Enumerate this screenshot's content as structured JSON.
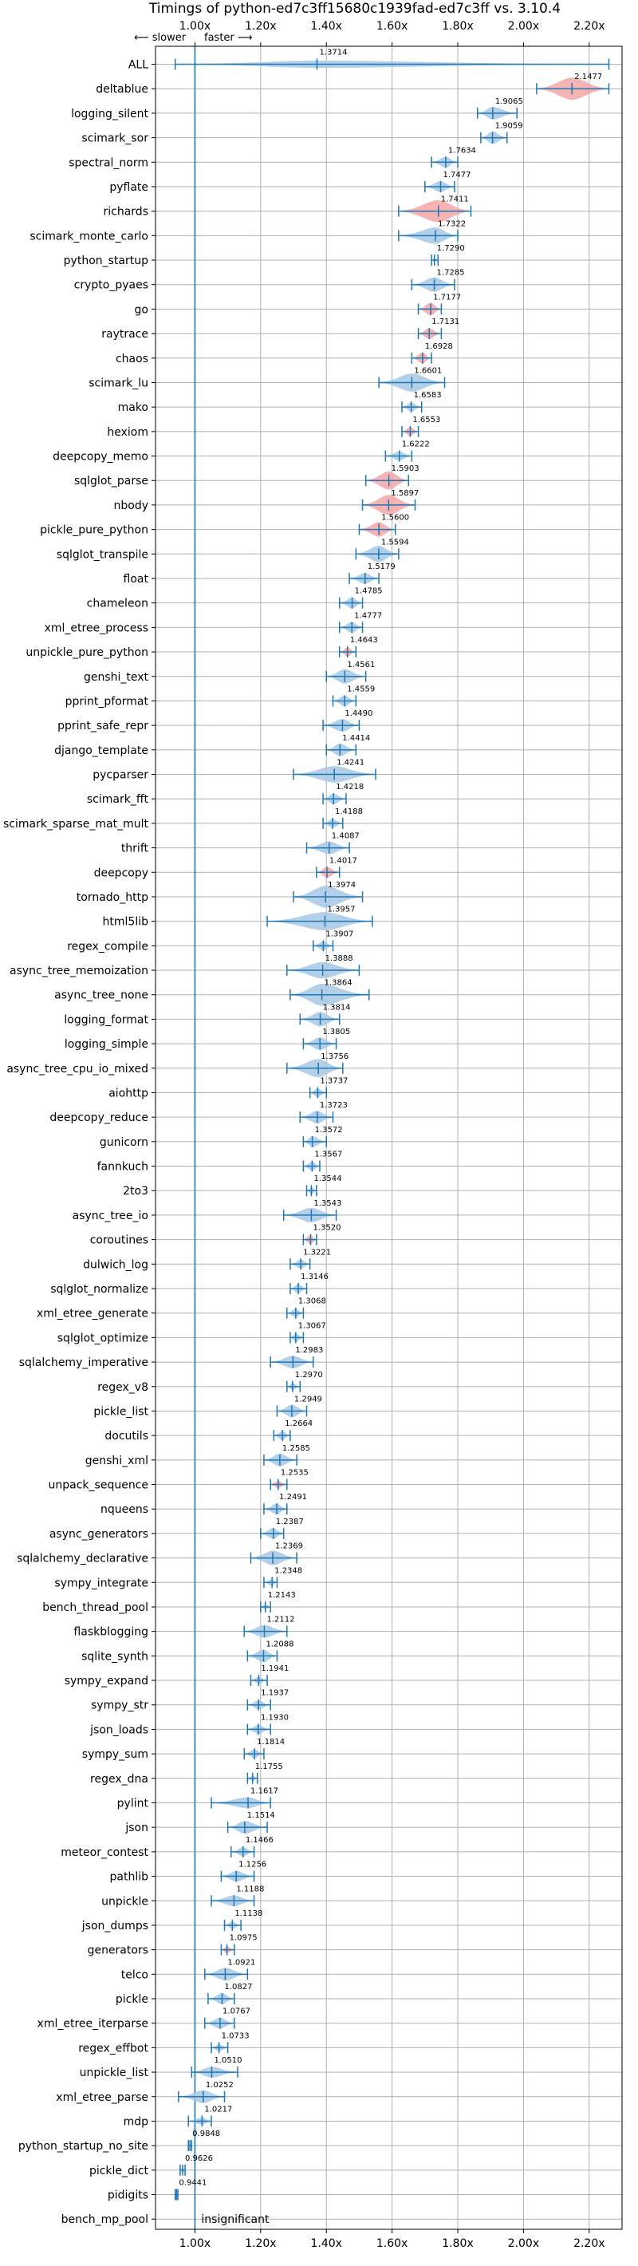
{
  "chart_data": {
    "type": "violin",
    "title": "Timings of python-ed7c3ff15680c1939fad-ed7c3ff vs. 3.10.4",
    "direction_labels": {
      "slower": "⟵ slower",
      "faster": "faster ⟶"
    },
    "xlim": [
      0.88,
      2.3
    ],
    "xticks": [
      1.0,
      1.2,
      1.4,
      1.6,
      1.8,
      2.0,
      2.2
    ],
    "xtick_labels": [
      "1.00x",
      "1.20x",
      "1.40x",
      "1.60x",
      "1.80x",
      "2.00x",
      "2.20x"
    ],
    "grid": true,
    "reference_line": 1.0,
    "colors": {
      "faster": "#1f77b4",
      "faster_fill": "#a6c8e4",
      "slower_fill": "#f4a6a6",
      "slower_stroke": "#d62728"
    },
    "insignificant_label": "insignificant",
    "benchmarks": [
      {
        "name": "ALL",
        "median": 1.3714,
        "min": 0.94,
        "max": 2.26,
        "width": 0.02,
        "highlight": false
      },
      {
        "name": "deltablue",
        "median": 2.1477,
        "min": 2.04,
        "max": 2.26,
        "width": 0.07,
        "highlight": true
      },
      {
        "name": "logging_silent",
        "median": 1.9065,
        "min": 1.86,
        "max": 1.98,
        "width": 0.035,
        "highlight": false
      },
      {
        "name": "scimark_sor",
        "median": 1.9059,
        "min": 1.87,
        "max": 1.95,
        "width": 0.035,
        "highlight": false
      },
      {
        "name": "spectral_norm",
        "median": 1.7634,
        "min": 1.72,
        "max": 1.8,
        "width": 0.03,
        "highlight": false
      },
      {
        "name": "pyflate",
        "median": 1.7477,
        "min": 1.7,
        "max": 1.79,
        "width": 0.03,
        "highlight": false
      },
      {
        "name": "richards",
        "median": 1.7411,
        "min": 1.62,
        "max": 1.84,
        "width": 0.06,
        "highlight": true
      },
      {
        "name": "scimark_monte_carlo",
        "median": 1.7322,
        "min": 1.62,
        "max": 1.8,
        "width": 0.045,
        "highlight": false
      },
      {
        "name": "python_startup",
        "median": 1.729,
        "min": 1.72,
        "max": 1.74,
        "width": 0.008,
        "highlight": false
      },
      {
        "name": "crypto_pyaes",
        "median": 1.7285,
        "min": 1.66,
        "max": 1.79,
        "width": 0.04,
        "highlight": false
      },
      {
        "name": "go",
        "median": 1.7177,
        "min": 1.68,
        "max": 1.75,
        "width": 0.035,
        "highlight": true
      },
      {
        "name": "raytrace",
        "median": 1.7131,
        "min": 1.68,
        "max": 1.75,
        "width": 0.03,
        "highlight": true
      },
      {
        "name": "chaos",
        "median": 1.6928,
        "min": 1.66,
        "max": 1.72,
        "width": 0.03,
        "highlight": true
      },
      {
        "name": "scimark_lu",
        "median": 1.6601,
        "min": 1.56,
        "max": 1.76,
        "width": 0.05,
        "highlight": false
      },
      {
        "name": "mako",
        "median": 1.6583,
        "min": 1.63,
        "max": 1.69,
        "width": 0.025,
        "highlight": false
      },
      {
        "name": "hexiom",
        "median": 1.6553,
        "min": 1.63,
        "max": 1.68,
        "width": 0.025,
        "highlight": true
      },
      {
        "name": "deepcopy_memo",
        "median": 1.6222,
        "min": 1.58,
        "max": 1.66,
        "width": 0.025,
        "highlight": false
      },
      {
        "name": "sqlglot_parse",
        "median": 1.5903,
        "min": 1.52,
        "max": 1.65,
        "width": 0.05,
        "highlight": true
      },
      {
        "name": "nbody",
        "median": 1.5897,
        "min": 1.51,
        "max": 1.67,
        "width": 0.055,
        "highlight": true
      },
      {
        "name": "pickle_pure_python",
        "median": 1.56,
        "min": 1.5,
        "max": 1.61,
        "width": 0.04,
        "highlight": true
      },
      {
        "name": "sqlglot_transpile",
        "median": 1.5594,
        "min": 1.49,
        "max": 1.62,
        "width": 0.045,
        "highlight": false
      },
      {
        "name": "float",
        "median": 1.5179,
        "min": 1.47,
        "max": 1.56,
        "width": 0.03,
        "highlight": false
      },
      {
        "name": "chameleon",
        "median": 1.4785,
        "min": 1.44,
        "max": 1.51,
        "width": 0.03,
        "highlight": false
      },
      {
        "name": "xml_etree_process",
        "median": 1.4777,
        "min": 1.44,
        "max": 1.51,
        "width": 0.03,
        "highlight": false
      },
      {
        "name": "unpickle_pure_python",
        "median": 1.4643,
        "min": 1.44,
        "max": 1.49,
        "width": 0.025,
        "highlight": true
      },
      {
        "name": "genshi_text",
        "median": 1.4561,
        "min": 1.4,
        "max": 1.52,
        "width": 0.04,
        "highlight": false
      },
      {
        "name": "pprint_pformat",
        "median": 1.4559,
        "min": 1.42,
        "max": 1.49,
        "width": 0.03,
        "highlight": false
      },
      {
        "name": "pprint_safe_repr",
        "median": 1.449,
        "min": 1.39,
        "max": 1.5,
        "width": 0.035,
        "highlight": false
      },
      {
        "name": "django_template",
        "median": 1.4414,
        "min": 1.4,
        "max": 1.49,
        "width": 0.035,
        "highlight": false
      },
      {
        "name": "pycparser",
        "median": 1.4241,
        "min": 1.3,
        "max": 1.55,
        "width": 0.045,
        "highlight": false
      },
      {
        "name": "scimark_fft",
        "median": 1.4218,
        "min": 1.39,
        "max": 1.46,
        "width": 0.03,
        "highlight": false
      },
      {
        "name": "scimark_sparse_mat_mult",
        "median": 1.4188,
        "min": 1.39,
        "max": 1.45,
        "width": 0.025,
        "highlight": false
      },
      {
        "name": "thrift",
        "median": 1.4087,
        "min": 1.34,
        "max": 1.47,
        "width": 0.035,
        "highlight": false
      },
      {
        "name": "deepcopy",
        "median": 1.4017,
        "min": 1.37,
        "max": 1.44,
        "width": 0.03,
        "highlight": true
      },
      {
        "name": "tornado_http",
        "median": 1.3974,
        "min": 1.3,
        "max": 1.51,
        "width": 0.06,
        "highlight": false
      },
      {
        "name": "html5lib",
        "median": 1.3957,
        "min": 1.22,
        "max": 1.54,
        "width": 0.05,
        "highlight": false
      },
      {
        "name": "regex_compile",
        "median": 1.3907,
        "min": 1.36,
        "max": 1.42,
        "width": 0.025,
        "highlight": false
      },
      {
        "name": "async_tree_memoization",
        "median": 1.3888,
        "min": 1.28,
        "max": 1.5,
        "width": 0.045,
        "highlight": false
      },
      {
        "name": "async_tree_none",
        "median": 1.3864,
        "min": 1.29,
        "max": 1.53,
        "width": 0.06,
        "highlight": false
      },
      {
        "name": "logging_format",
        "median": 1.3814,
        "min": 1.32,
        "max": 1.44,
        "width": 0.04,
        "highlight": false
      },
      {
        "name": "logging_simple",
        "median": 1.3805,
        "min": 1.33,
        "max": 1.43,
        "width": 0.035,
        "highlight": false
      },
      {
        "name": "async_tree_cpu_io_mixed",
        "median": 1.3756,
        "min": 1.28,
        "max": 1.45,
        "width": 0.05,
        "highlight": false
      },
      {
        "name": "aiohttp",
        "median": 1.3737,
        "min": 1.35,
        "max": 1.4,
        "width": 0.025,
        "highlight": false
      },
      {
        "name": "deepcopy_reduce",
        "median": 1.3723,
        "min": 1.32,
        "max": 1.42,
        "width": 0.035,
        "highlight": false
      },
      {
        "name": "gunicorn",
        "median": 1.3572,
        "min": 1.33,
        "max": 1.4,
        "width": 0.03,
        "highlight": false
      },
      {
        "name": "fannkuch",
        "median": 1.3567,
        "min": 1.33,
        "max": 1.38,
        "width": 0.025,
        "highlight": false
      },
      {
        "name": "2to3",
        "median": 1.3544,
        "min": 1.34,
        "max": 1.37,
        "width": 0.02,
        "highlight": false
      },
      {
        "name": "async_tree_io",
        "median": 1.3543,
        "min": 1.27,
        "max": 1.43,
        "width": 0.04,
        "highlight": false
      },
      {
        "name": "coroutines",
        "median": 1.352,
        "min": 1.33,
        "max": 1.37,
        "width": 0.025,
        "highlight": true
      },
      {
        "name": "dulwich_log",
        "median": 1.3221,
        "min": 1.29,
        "max": 1.35,
        "width": 0.025,
        "highlight": false
      },
      {
        "name": "sqlglot_normalize",
        "median": 1.3146,
        "min": 1.29,
        "max": 1.34,
        "width": 0.025,
        "highlight": false
      },
      {
        "name": "xml_etree_generate",
        "median": 1.3068,
        "min": 1.28,
        "max": 1.33,
        "width": 0.025,
        "highlight": false
      },
      {
        "name": "sqlglot_optimize",
        "median": 1.3067,
        "min": 1.29,
        "max": 1.33,
        "width": 0.025,
        "highlight": false
      },
      {
        "name": "sqlalchemy_imperative",
        "median": 1.2983,
        "min": 1.23,
        "max": 1.36,
        "width": 0.035,
        "highlight": false
      },
      {
        "name": "regex_v8",
        "median": 1.297,
        "min": 1.28,
        "max": 1.32,
        "width": 0.02,
        "highlight": false
      },
      {
        "name": "pickle_list",
        "median": 1.2949,
        "min": 1.25,
        "max": 1.34,
        "width": 0.035,
        "highlight": false
      },
      {
        "name": "docutils",
        "median": 1.2664,
        "min": 1.24,
        "max": 1.29,
        "width": 0.025,
        "highlight": false
      },
      {
        "name": "genshi_xml",
        "median": 1.2585,
        "min": 1.21,
        "max": 1.31,
        "width": 0.035,
        "highlight": false
      },
      {
        "name": "unpack_sequence",
        "median": 1.2535,
        "min": 1.23,
        "max": 1.28,
        "width": 0.02,
        "highlight": true
      },
      {
        "name": "nqueens",
        "median": 1.2491,
        "min": 1.21,
        "max": 1.28,
        "width": 0.03,
        "highlight": false
      },
      {
        "name": "async_generators",
        "median": 1.2387,
        "min": 1.2,
        "max": 1.27,
        "width": 0.03,
        "highlight": false
      },
      {
        "name": "sqlalchemy_declarative",
        "median": 1.2369,
        "min": 1.17,
        "max": 1.31,
        "width": 0.04,
        "highlight": false
      },
      {
        "name": "sympy_integrate",
        "median": 1.2348,
        "min": 1.21,
        "max": 1.25,
        "width": 0.02,
        "highlight": false
      },
      {
        "name": "bench_thread_pool",
        "median": 1.2143,
        "min": 1.2,
        "max": 1.23,
        "width": 0.015,
        "highlight": false
      },
      {
        "name": "flaskblogging",
        "median": 1.2112,
        "min": 1.15,
        "max": 1.28,
        "width": 0.035,
        "highlight": false
      },
      {
        "name": "sqlite_synth",
        "median": 1.2088,
        "min": 1.16,
        "max": 1.25,
        "width": 0.035,
        "highlight": false
      },
      {
        "name": "sympy_expand",
        "median": 1.1941,
        "min": 1.17,
        "max": 1.22,
        "width": 0.02,
        "highlight": false
      },
      {
        "name": "sympy_str",
        "median": 1.1937,
        "min": 1.16,
        "max": 1.23,
        "width": 0.025,
        "highlight": false
      },
      {
        "name": "json_loads",
        "median": 1.193,
        "min": 1.16,
        "max": 1.23,
        "width": 0.025,
        "highlight": false
      },
      {
        "name": "sympy_sum",
        "median": 1.1814,
        "min": 1.15,
        "max": 1.21,
        "width": 0.025,
        "highlight": false
      },
      {
        "name": "regex_dna",
        "median": 1.1755,
        "min": 1.16,
        "max": 1.19,
        "width": 0.015,
        "highlight": false
      },
      {
        "name": "pylint",
        "median": 1.1617,
        "min": 1.05,
        "max": 1.23,
        "width": 0.03,
        "highlight": false
      },
      {
        "name": "json",
        "median": 1.1514,
        "min": 1.1,
        "max": 1.22,
        "width": 0.035,
        "highlight": false
      },
      {
        "name": "meteor_contest",
        "median": 1.1466,
        "min": 1.11,
        "max": 1.18,
        "width": 0.025,
        "highlight": false
      },
      {
        "name": "pathlib",
        "median": 1.1256,
        "min": 1.08,
        "max": 1.18,
        "width": 0.03,
        "highlight": false
      },
      {
        "name": "unpickle",
        "median": 1.1188,
        "min": 1.05,
        "max": 1.18,
        "width": 0.03,
        "highlight": false
      },
      {
        "name": "json_dumps",
        "median": 1.1138,
        "min": 1.09,
        "max": 1.14,
        "width": 0.02,
        "highlight": false
      },
      {
        "name": "generators",
        "median": 1.0975,
        "min": 1.08,
        "max": 1.12,
        "width": 0.02,
        "highlight": true
      },
      {
        "name": "telco",
        "median": 1.0921,
        "min": 1.03,
        "max": 1.16,
        "width": 0.035,
        "highlight": false
      },
      {
        "name": "pickle",
        "median": 1.0827,
        "min": 1.04,
        "max": 1.12,
        "width": 0.03,
        "highlight": false
      },
      {
        "name": "xml_etree_iterparse",
        "median": 1.0767,
        "min": 1.03,
        "max": 1.12,
        "width": 0.03,
        "highlight": false
      },
      {
        "name": "regex_effbot",
        "median": 1.0733,
        "min": 1.05,
        "max": 1.1,
        "width": 0.02,
        "highlight": false
      },
      {
        "name": "unpickle_list",
        "median": 1.051,
        "min": 0.99,
        "max": 1.13,
        "width": 0.03,
        "highlight": false
      },
      {
        "name": "xml_etree_parse",
        "median": 1.0252,
        "min": 0.95,
        "max": 1.09,
        "width": 0.035,
        "highlight": false
      },
      {
        "name": "mdp",
        "median": 1.0217,
        "min": 0.98,
        "max": 1.05,
        "width": 0.02,
        "highlight": false
      },
      {
        "name": "python_startup_no_site",
        "median": 0.9848,
        "min": 0.98,
        "max": 0.99,
        "width": 0.006,
        "highlight": false
      },
      {
        "name": "pickle_dict",
        "median": 0.9626,
        "min": 0.955,
        "max": 0.97,
        "width": 0.01,
        "highlight": false
      },
      {
        "name": "pidigits",
        "median": 0.9441,
        "min": 0.94,
        "max": 0.948,
        "width": 0.008,
        "highlight": false
      },
      {
        "name": "bench_mp_pool",
        "median": null,
        "min": null,
        "max": null,
        "width": 0,
        "highlight": false,
        "insignificant": true
      }
    ]
  }
}
